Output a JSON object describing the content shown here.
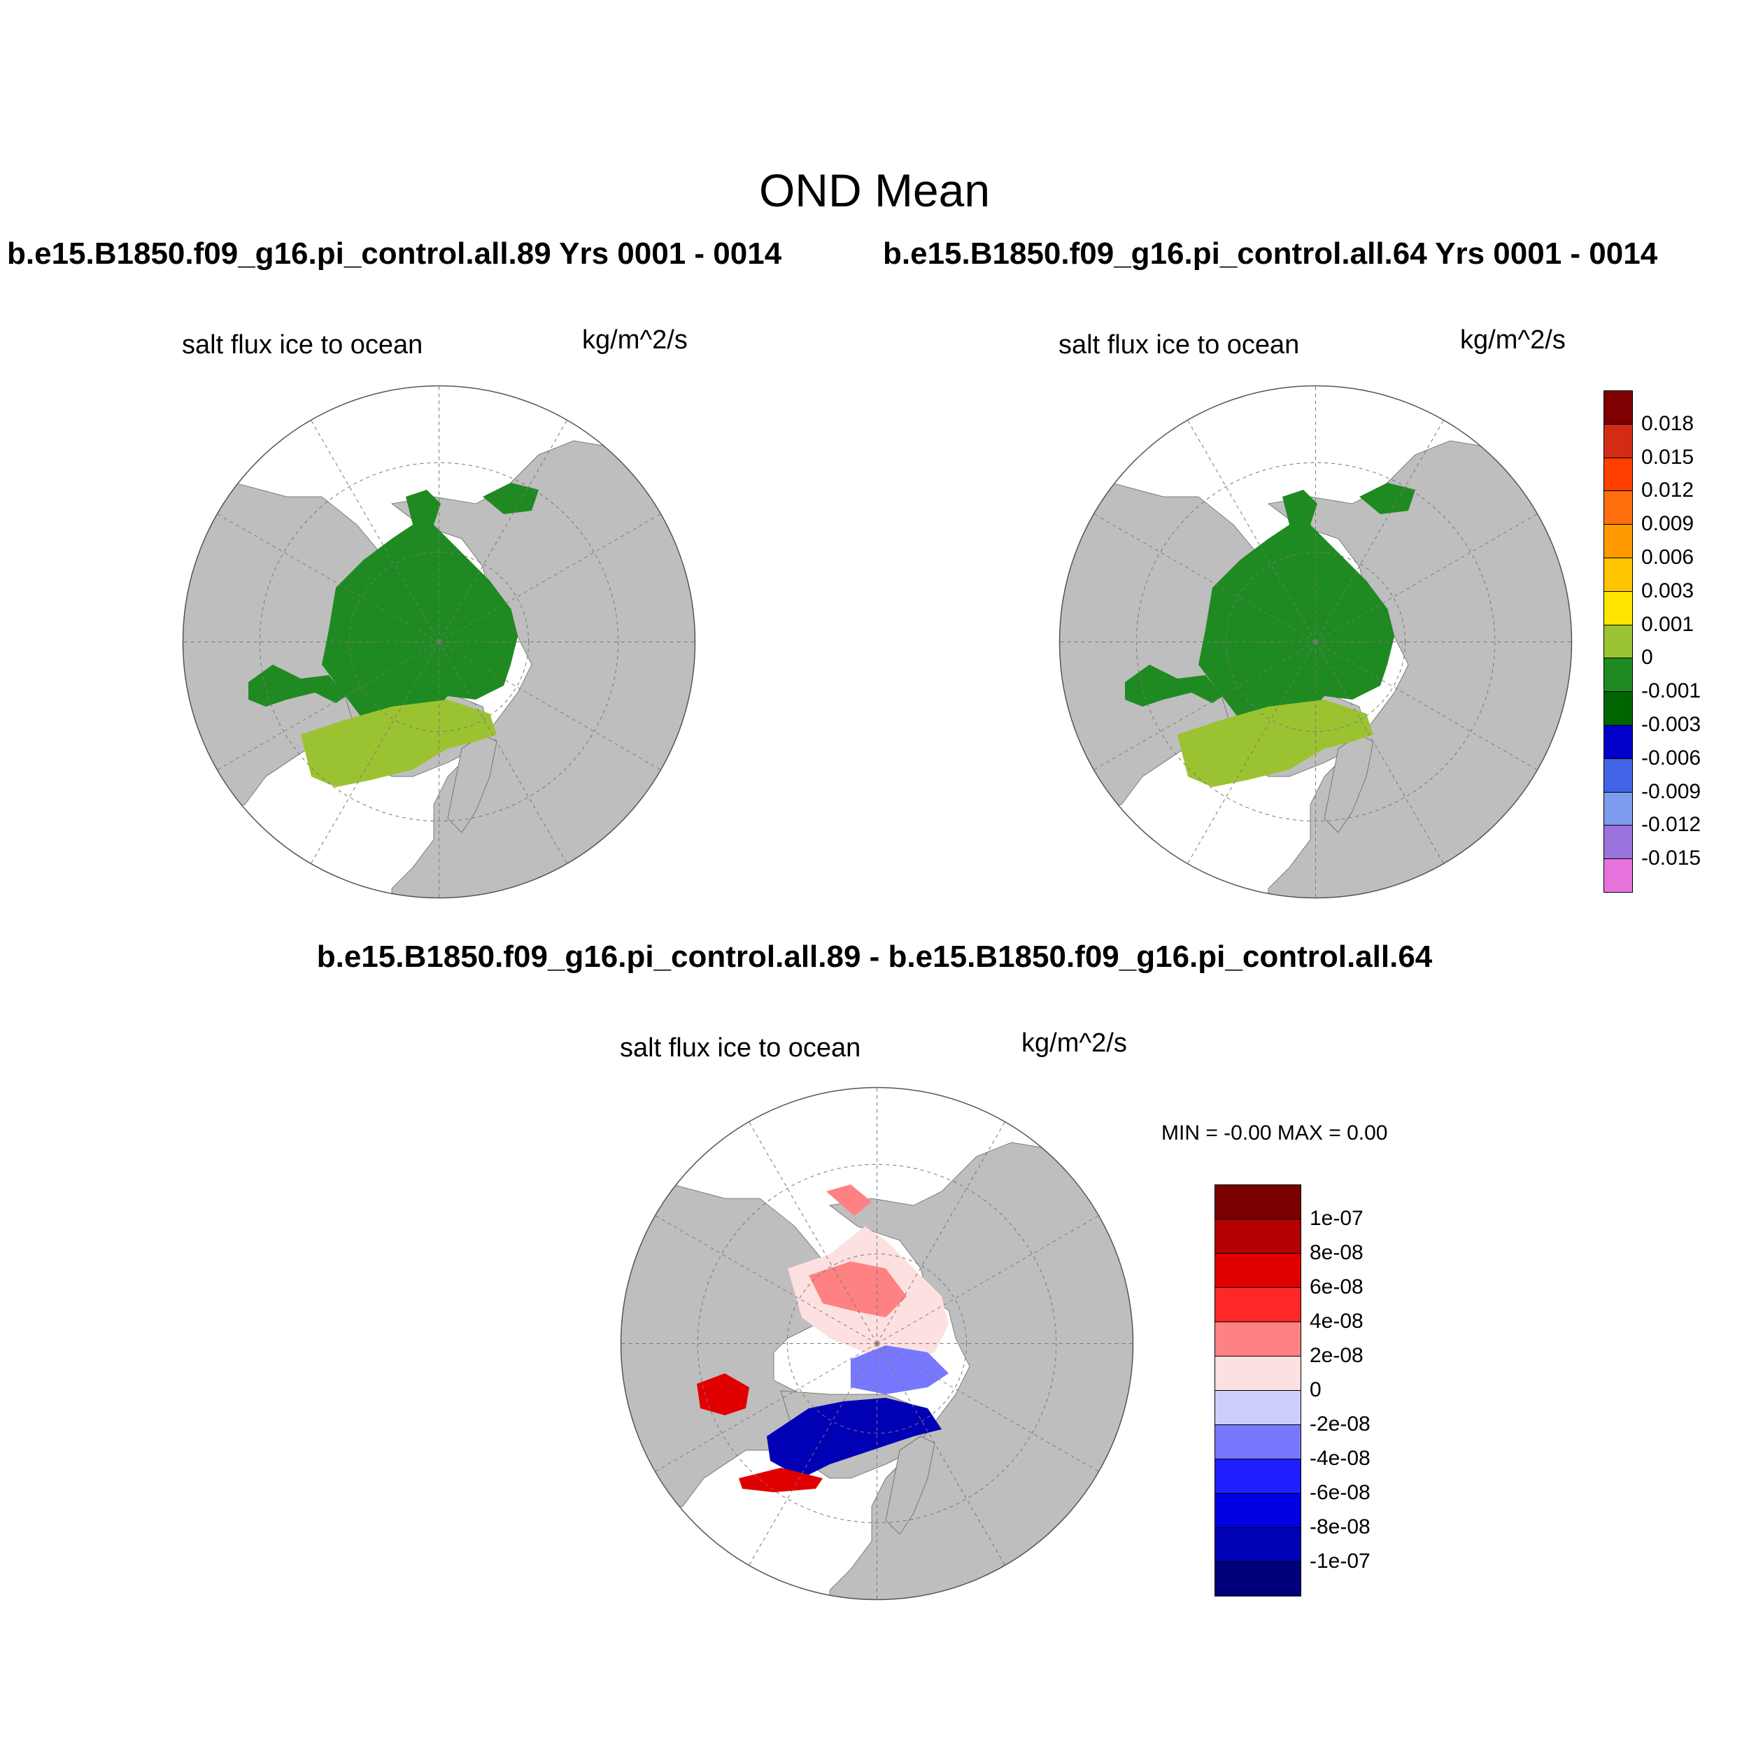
{
  "figure": {
    "title": "OND Mean",
    "run_a_title": "b.e15.B1850.f09_g16.pi_control.all.89  Yrs 0001 - 0014",
    "run_b_title": "b.e15.B1850.f09_g16.pi_control.all.64  Yrs 0001 - 0014",
    "diff_title": "b.e15.B1850.f09_g16.pi_control.all.89 - b.e15.B1850.f09_g16.pi_control.all.64"
  },
  "panels": [
    {
      "variable": "salt flux ice to ocean",
      "units": "kg/m^2/s"
    },
    {
      "variable": "salt flux ice to ocean",
      "units": "kg/m^2/s"
    },
    {
      "variable": "salt flux ice to ocean",
      "units": "kg/m^2/s",
      "min_max_text": "MIN =  -0.00 MAX =   0.00"
    }
  ],
  "colorbar_top": {
    "colors": [
      "#7f0000",
      "#d42b14",
      "#ff4000",
      "#ff6e0d",
      "#ff9a00",
      "#ffc400",
      "#ffe400",
      "#9bc331",
      "#1f8a21",
      "#006400",
      "#0000c8",
      "#4163e6",
      "#7d9cf0",
      "#9b73dc",
      "#e673dc"
    ],
    "labels": [
      "0.018",
      "0.015",
      "0.012",
      "0.009",
      "0.006",
      "0.003",
      "0.001",
      "0",
      "-0.001",
      "-0.003",
      "-0.006",
      "-0.009",
      "-0.012",
      "-0.015"
    ]
  },
  "colorbar_diff": {
    "colors": [
      "#7a0000",
      "#b40000",
      "#e10000",
      "#ff2828",
      "#ff8282",
      "#fde0e0",
      "#cdcdfc",
      "#7878ff",
      "#1e1eff",
      "#0000e1",
      "#0000b4",
      "#00007a"
    ],
    "labels": [
      "1e-07",
      "8e-08",
      "6e-08",
      "4e-08",
      "2e-08",
      "0",
      "-2e-08",
      "-4e-08",
      "-6e-08",
      "-8e-08",
      "-1e-07"
    ]
  },
  "map_colors": {
    "land": "#bebebe",
    "ocean_nodata": "#ffffff",
    "field_main": "#1f8a21",
    "field_edge": "#9bc331",
    "diff_pos_strong": "#e10000",
    "diff_pos_light": "#ff8282",
    "diff_pos_faint": "#fde0e0",
    "diff_neg_strong": "#0000b4",
    "diff_neg_light": "#7878ff"
  }
}
